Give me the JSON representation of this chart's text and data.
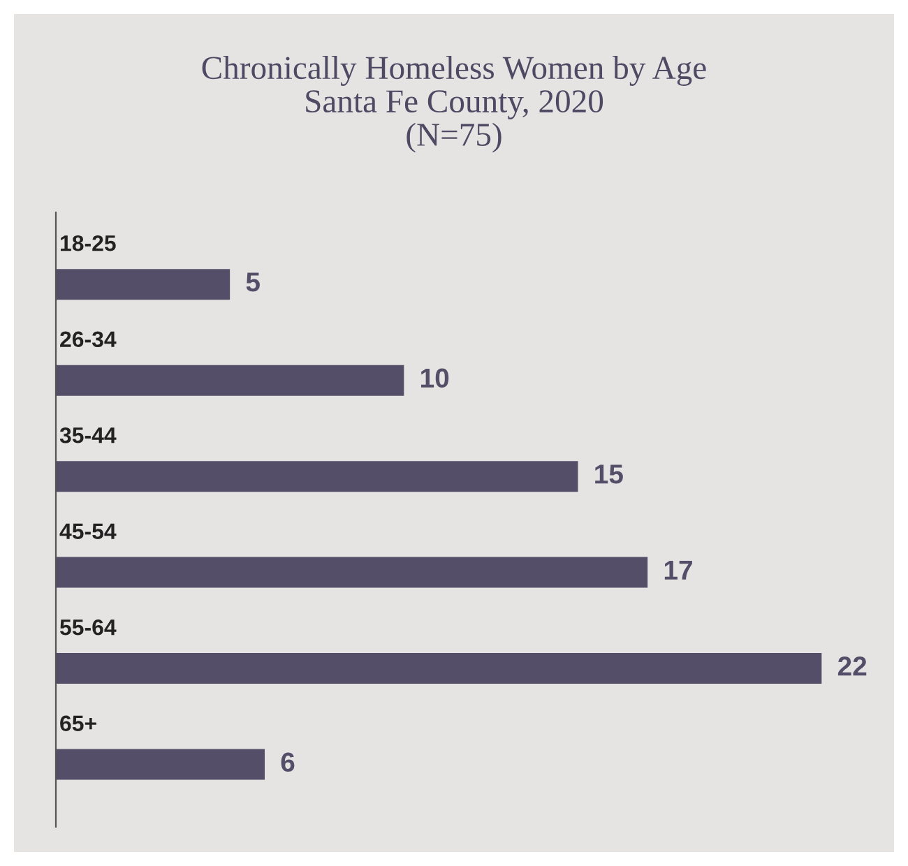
{
  "chart_data": {
    "type": "bar",
    "orientation": "horizontal",
    "title": "Chronically Homeless Women by Age\nSanta Fe County, 2020\n(N=75)",
    "categories": [
      "18-25",
      "26-34",
      "35-44",
      "45-54",
      "55-64",
      "65+"
    ],
    "values": [
      5,
      10,
      15,
      17,
      22,
      6
    ],
    "color": "#554e68",
    "data_labels": true,
    "xlim": [
      0,
      24
    ]
  }
}
